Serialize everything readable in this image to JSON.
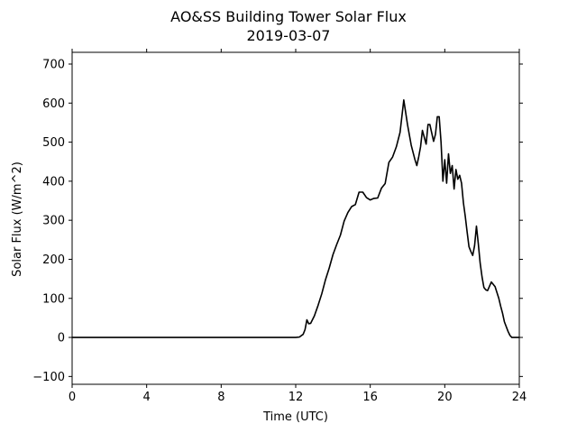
{
  "chart_data": {
    "type": "line",
    "title": "AO&SS Building Tower Solar Flux",
    "subtitle": "2019-03-07",
    "xlabel": "Time (UTC)",
    "ylabel": "Solar Flux (W/m^2)",
    "xlim": [
      0,
      24
    ],
    "ylim": [
      -120,
      730
    ],
    "xticks": [
      0,
      4,
      8,
      12,
      16,
      20,
      24
    ],
    "xtick_labels": [
      "0",
      "4",
      "8",
      "12",
      "16",
      "20",
      "24"
    ],
    "yticks": [
      -100,
      0,
      100,
      200,
      300,
      400,
      500,
      600,
      700
    ],
    "ytick_labels": [
      "−100",
      "0",
      "100",
      "200",
      "300",
      "400",
      "500",
      "600",
      "700"
    ],
    "grid": false,
    "colors": {
      "line": "#000000"
    },
    "series": [
      {
        "x": [
          0,
          2,
          4,
          6,
          8,
          10,
          11,
          12,
          12.2,
          12.4,
          12.5,
          12.6,
          12.7,
          12.8,
          13.0,
          13.2,
          13.4,
          13.6,
          13.8,
          14.0,
          14.2,
          14.4,
          14.6,
          14.8,
          15.0,
          15.2,
          15.4,
          15.6,
          15.8,
          16.0,
          16.2,
          16.4,
          16.6,
          16.8,
          17.0,
          17.2,
          17.4,
          17.6,
          17.8,
          18.0,
          18.2,
          18.4,
          18.5,
          18.6,
          18.7,
          18.8,
          19.0,
          19.1,
          19.2,
          19.4,
          19.5,
          19.6,
          19.7,
          19.8,
          19.9,
          20.0,
          20.1,
          20.2,
          20.3,
          20.4,
          20.5,
          20.6,
          20.7,
          20.8,
          20.9,
          21.0,
          21.1,
          21.2,
          21.3,
          21.4,
          21.5,
          21.6,
          21.7,
          21.8,
          21.9,
          22.0,
          22.1,
          22.2,
          22.3,
          22.5,
          22.7,
          22.9,
          23.0,
          23.1,
          23.2,
          23.4,
          23.5,
          23.6,
          23.7,
          23.8,
          24.0
        ],
        "y": [
          0,
          0,
          0,
          0,
          0,
          0,
          0,
          0,
          1,
          8,
          20,
          45,
          35,
          36,
          55,
          82,
          112,
          148,
          178,
          212,
          238,
          262,
          298,
          320,
          335,
          340,
          372,
          372,
          358,
          352,
          356,
          357,
          382,
          394,
          448,
          462,
          488,
          525,
          608,
          545,
          492,
          455,
          440,
          462,
          488,
          530,
          495,
          545,
          545,
          502,
          520,
          565,
          565,
          500,
          400,
          455,
          395,
          470,
          420,
          440,
          380,
          430,
          405,
          415,
          395,
          345,
          310,
          270,
          232,
          220,
          210,
          235,
          285,
          240,
          190,
          155,
          128,
          122,
          120,
          142,
          130,
          100,
          80,
          62,
          40,
          15,
          5,
          0,
          0,
          0,
          0
        ]
      }
    ]
  }
}
